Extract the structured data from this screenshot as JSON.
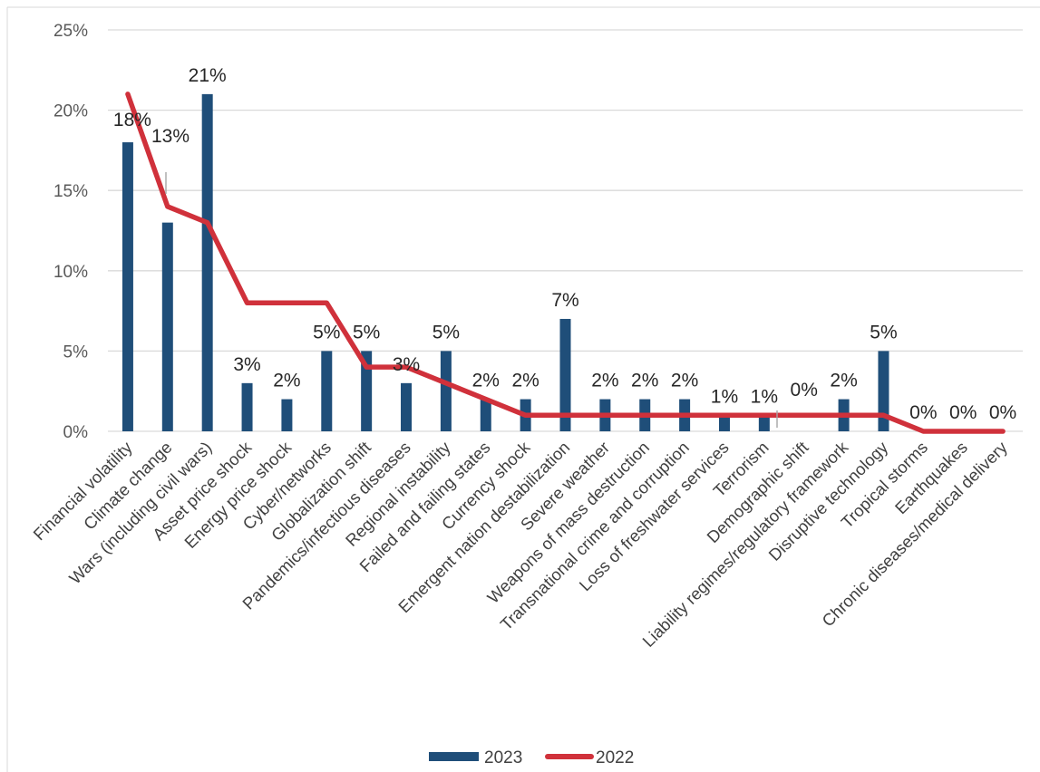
{
  "chart_data": {
    "type": "bar",
    "categories": [
      "Financial volatility",
      "Climate change",
      "Wars (including civil wars)",
      "Asset price shock",
      "Energy price shock",
      "Cyber/networks",
      "Globalization shift",
      "Pandemics/infectious diseases",
      "Regional instability",
      "Failed and failing states",
      "Currency shock",
      "Emergent nation destabilization",
      "Severe weather",
      "Weapons of mass destruction",
      "Transnational crime and corruption",
      "Loss of freshwater services",
      "Terrorism",
      "Demographic shift",
      "Liability regimes/regulatory framework",
      "Disruptive technology",
      "Tropical storms",
      "Earthquakes",
      "Chronic diseases/medical delivery"
    ],
    "series": [
      {
        "name": "2023",
        "type": "bar",
        "color": "#1f4e79",
        "values": [
          18,
          13,
          21,
          3,
          2,
          5,
          5,
          3,
          5,
          2,
          2,
          7,
          2,
          2,
          2,
          1,
          1,
          0,
          2,
          5,
          0,
          0,
          0
        ],
        "data_labels": [
          "18%",
          "13%",
          "21%",
          "3%",
          "2%",
          "5%",
          "5%",
          "3%",
          "5%",
          "2%",
          "2%",
          "7%",
          "2%",
          "2%",
          "2%",
          "1%",
          "1%",
          "0%",
          "2%",
          "5%",
          "0%",
          "0%",
          "0%"
        ]
      },
      {
        "name": "2022",
        "type": "line",
        "color": "#d0313b",
        "values": [
          21,
          14,
          13,
          8,
          8,
          8,
          4,
          4,
          3,
          2,
          1,
          1,
          1,
          1,
          1,
          1,
          1,
          1,
          1,
          1,
          0,
          0,
          0
        ]
      }
    ],
    "ylim": [
      0,
      25
    ],
    "yticks": [
      "0%",
      "5%",
      "10%",
      "15%",
      "20%",
      "25%"
    ],
    "ytick_values": [
      0,
      5,
      10,
      15,
      20,
      25
    ],
    "grid": true,
    "legend": "bottom",
    "xlabel": "",
    "ylabel": ""
  }
}
